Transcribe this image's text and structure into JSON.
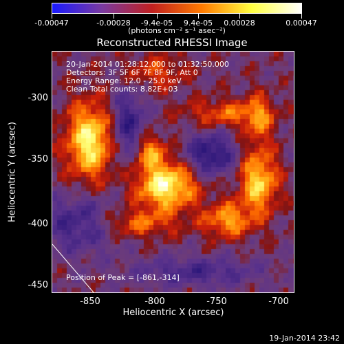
{
  "colorbar": {
    "tick_labels": [
      "-0.00047",
      "-0.00028",
      "-9.4e-05",
      "9.4e-05",
      "0.00028",
      "0.00047"
    ],
    "units": "(photons cm⁻² s⁻¹ asec⁻²)",
    "colors": [
      "#1a1aff",
      "#7a3aa0",
      "#c02020",
      "#ff7a00",
      "#ffff40",
      "#ffffff"
    ]
  },
  "title": "Reconstructed RHESSI Image",
  "annotations": {
    "time_range": "20-Jan-2014 01:28:12.000 to 01:32:50.000",
    "detectors": "Detectors: 3F 5F 6F 7F 8F 9F, Att 0",
    "energy": "Energy Range: 12.0 - 25.0 keV",
    "clean": "Clean     Total counts: 8.82E+03",
    "peak": "Position of Peak = [-861,-314]"
  },
  "axes": {
    "xlabel": "Heliocentric X (arcsec)",
    "ylabel": "Heliocentric Y (arcsec)",
    "xticks": [
      "-850",
      "-800",
      "-750",
      "-700"
    ],
    "yticks": [
      "-300",
      "-350",
      "-400",
      "-450"
    ]
  },
  "timestamp": "19-Jan-2014 23:42",
  "limb_line": true
}
